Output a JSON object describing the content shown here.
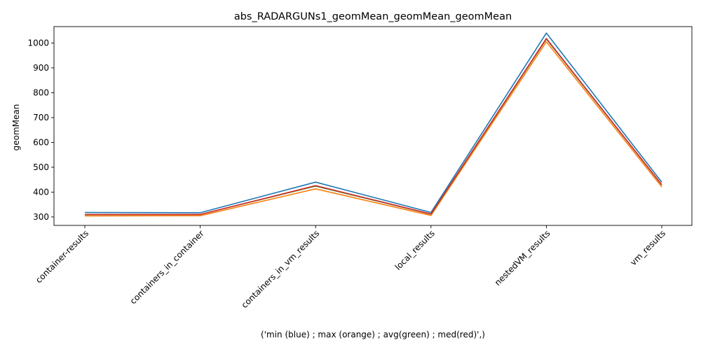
{
  "chart_data": {
    "type": "line",
    "title": "abs_RADARGUNs1_geomMean_geomMean_geomMean",
    "xlabel": "('min (blue) ; max (orange) ; avg(green) ; med(red)',)",
    "ylabel": "geomMean",
    "categories": [
      "container-results",
      "containers_in_container",
      "containers_in_vm_results",
      "local_results",
      "nestedVM_results",
      "vm_results"
    ],
    "ylim": [
      266,
      1066
    ],
    "yticks": [
      300,
      400,
      500,
      600,
      700,
      800,
      900,
      1000
    ],
    "grid": false,
    "series": [
      {
        "color": "#1f77b4",
        "values": [
          318,
          317,
          440,
          318,
          1040,
          440
        ]
      },
      {
        "color": "#ff7f0e",
        "values": [
          304,
          305,
          413,
          306,
          1005,
          421
        ]
      },
      {
        "color": "#2ca02c",
        "values": [
          309,
          310,
          424,
          311,
          1016,
          429
        ]
      },
      {
        "color": "#d62728",
        "values": [
          310,
          310,
          426,
          312,
          1018,
          430
        ]
      }
    ]
  }
}
